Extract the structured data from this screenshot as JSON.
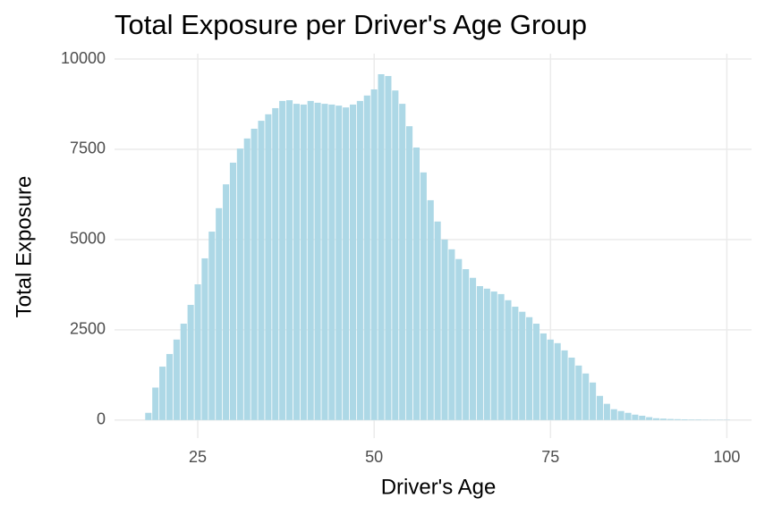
{
  "chart_data": {
    "type": "bar",
    "title": "Total Exposure per Driver's Age Group",
    "xlabel": "Driver's Age",
    "ylabel": "Total Exposure",
    "x": [
      18,
      19,
      20,
      21,
      22,
      23,
      24,
      25,
      26,
      27,
      28,
      29,
      30,
      31,
      32,
      33,
      34,
      35,
      36,
      37,
      38,
      39,
      40,
      41,
      42,
      43,
      44,
      45,
      46,
      47,
      48,
      49,
      50,
      51,
      52,
      53,
      54,
      55,
      56,
      57,
      58,
      59,
      60,
      61,
      62,
      63,
      64,
      65,
      66,
      67,
      68,
      69,
      70,
      71,
      72,
      73,
      74,
      75,
      76,
      77,
      78,
      79,
      80,
      81,
      82,
      83,
      84,
      85,
      86,
      87,
      88,
      89,
      90,
      91,
      92,
      93,
      94,
      95,
      96,
      97,
      98,
      99,
      100
    ],
    "values": [
      200,
      900,
      1480,
      1830,
      2230,
      2670,
      3190,
      3760,
      4480,
      5220,
      5870,
      6530,
      7130,
      7520,
      7800,
      8070,
      8290,
      8470,
      8640,
      8840,
      8860,
      8760,
      8740,
      8840,
      8790,
      8760,
      8740,
      8710,
      8660,
      8740,
      8840,
      8990,
      9160,
      9580,
      9530,
      9130,
      8760,
      8140,
      7550,
      6860,
      6090,
      5500,
      5000,
      4730,
      4460,
      4180,
      3940,
      3710,
      3640,
      3560,
      3490,
      3320,
      3140,
      3000,
      2850,
      2670,
      2400,
      2230,
      2130,
      1930,
      1730,
      1510,
      1290,
      1040,
      670,
      450,
      300,
      250,
      200,
      150,
      120,
      80,
      50,
      40,
      30,
      25,
      20,
      15,
      15,
      10,
      10,
      8,
      8
    ],
    "color": "#add8e6",
    "xlim": [
      13.2,
      103.5
    ],
    "xticks": [
      25,
      50,
      75,
      100
    ],
    "ylim": [
      -500,
      10150
    ],
    "yticks": [
      0,
      2500,
      5000,
      7500,
      10000
    ],
    "grid": true
  }
}
